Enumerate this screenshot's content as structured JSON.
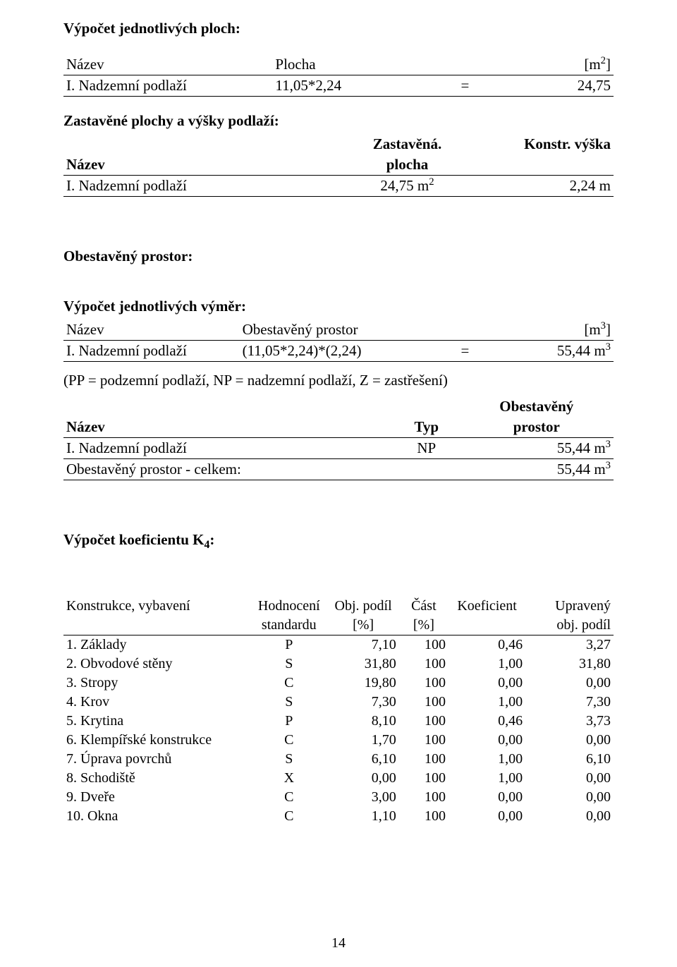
{
  "titles": {
    "plochy": "Výpočet jednotlivých ploch:",
    "zastavene": "Zastavěné plochy a výšky podlaží:",
    "obestaveny": "Obestavěný prostor:",
    "vymer": "Výpočet jednotlivých výměr:",
    "k4": "Výpočet koeficientu K₄:"
  },
  "t1": {
    "h_nazev": "Název",
    "h_plocha": "Plocha",
    "h_unit": "[m²]",
    "r_nazev": "I. Nadzemní podlaží",
    "r_calc": "11,05*2,24",
    "r_eq": "=",
    "r_val": "24,75"
  },
  "t2": {
    "h_nazev": "Název",
    "h_zast": "Zastavěná.",
    "h_plocha": "plocha",
    "h_konstr": "Konstr. výška",
    "r_nazev": "I. Nadzemní podlaží",
    "r_zast": "24,75 m²",
    "r_konstr": "2,24 m"
  },
  "t3": {
    "h_nazev": "Název",
    "h_op": "Obestavěný prostor",
    "h_unit": "[m³]",
    "r_nazev": "I. Nadzemní podlaží",
    "r_calc": "(11,05*2,24)*(2,24)",
    "r_eq": "=",
    "r_val": "55,44 m³"
  },
  "note": "(PP = podzemní podlaží, NP = nadzemní podlaží, Z = zastřešení)",
  "t4": {
    "h_nazev": "Název",
    "h_typ": "Typ",
    "h_op1": "Obestavěný",
    "h_op2": "prostor",
    "r1_nazev": "I. Nadzemní podlaží",
    "r1_typ": "NP",
    "r1_val": "55,44 m³",
    "r2_nazev": "Obestavěný prostor - celkem:",
    "r2_val": "55,44 m³"
  },
  "k4": {
    "h_kon": "Konstrukce, vybavení",
    "h_hod1": "Hodnocení",
    "h_hod2": "standardu",
    "h_obj1": "Obj. podíl",
    "h_obj2": "[%]",
    "h_cast1": "Část",
    "h_cast2": "[%]",
    "h_koef": "Koeficient",
    "h_upr1": "Upravený",
    "h_upr2": "obj. podíl",
    "rows": [
      {
        "n": "1. Základy",
        "h": "P",
        "o": "7,10",
        "c": "100",
        "k": "0,46",
        "u": "3,27"
      },
      {
        "n": "2. Obvodové stěny",
        "h": "S",
        "o": "31,80",
        "c": "100",
        "k": "1,00",
        "u": "31,80"
      },
      {
        "n": "3. Stropy",
        "h": "C",
        "o": "19,80",
        "c": "100",
        "k": "0,00",
        "u": "0,00"
      },
      {
        "n": "4. Krov",
        "h": "S",
        "o": "7,30",
        "c": "100",
        "k": "1,00",
        "u": "7,30"
      },
      {
        "n": "5. Krytina",
        "h": "P",
        "o": "8,10",
        "c": "100",
        "k": "0,46",
        "u": "3,73"
      },
      {
        "n": "6. Klempířské konstrukce",
        "h": "C",
        "o": "1,70",
        "c": "100",
        "k": "0,00",
        "u": "0,00"
      },
      {
        "n": "7. Úprava povrchů",
        "h": "S",
        "o": "6,10",
        "c": "100",
        "k": "1,00",
        "u": "6,10"
      },
      {
        "n": "8. Schodiště",
        "h": "X",
        "o": "0,00",
        "c": "100",
        "k": "1,00",
        "u": "0,00"
      },
      {
        "n": "9. Dveře",
        "h": "C",
        "o": "3,00",
        "c": "100",
        "k": "0,00",
        "u": "0,00"
      },
      {
        "n": "10. Okna",
        "h": "C",
        "o": "1,10",
        "c": "100",
        "k": "0,00",
        "u": "0,00"
      }
    ]
  },
  "pagenum": "14"
}
